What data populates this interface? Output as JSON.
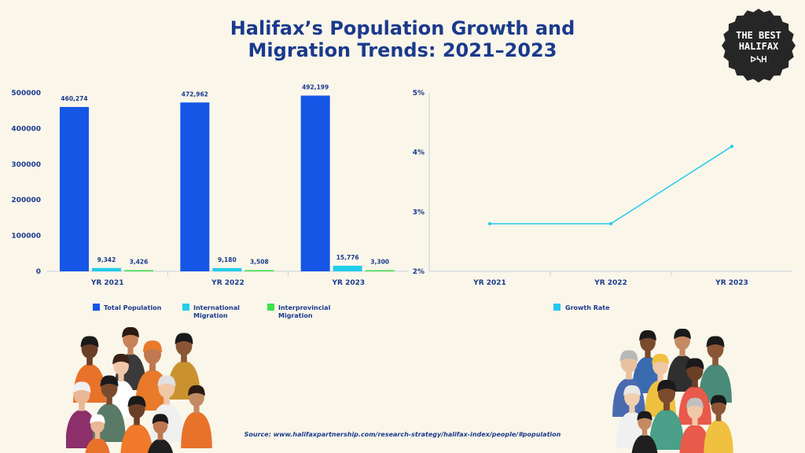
{
  "title": {
    "line1": "Halifax’s Population Growth and",
    "line2": "Migration Trends: 2021–2023"
  },
  "badge": {
    "line1": "THE BEST",
    "line2": "HALIFAX",
    "mark": "ᐅᓴᕼ"
  },
  "source": "Source: www.halifaxpartnership.com/research-strategy/halifax-index/people/#population",
  "colors": {
    "background": "#faf6ea",
    "title": "#1a3a8c",
    "total_population": "#1556e6",
    "international_migration": "#22cdea",
    "interprovincial_migration": "#3ee04a",
    "growth_rate": "#24c8ee"
  },
  "chart_data": [
    {
      "type": "bar",
      "categories": [
        "YR 2021",
        "YR 2022",
        "YR 2023"
      ],
      "series": [
        {
          "name": "Total Population",
          "values": [
            460274,
            472962,
            492199
          ],
          "labels": [
            "460,274",
            "472,962",
            "492,199"
          ]
        },
        {
          "name": "International Migration",
          "values": [
            9342,
            9180,
            15776
          ],
          "labels": [
            "9,342",
            "9,180",
            "15,776"
          ]
        },
        {
          "name": "Interprovincial Migration",
          "values": [
            3426,
            3508,
            3300
          ],
          "labels": [
            "3,426",
            "3,508",
            "3,300"
          ]
        }
      ],
      "legend_lines": [
        [
          "Total Population"
        ],
        [
          "International",
          "Migration"
        ],
        [
          "Interprovincial",
          "Migration"
        ]
      ],
      "yticks": [
        "0",
        "100000",
        "200000",
        "300000",
        "400000",
        "500000"
      ],
      "ylim": [
        0,
        500000
      ],
      "legend_position": "bottom",
      "grid": false
    },
    {
      "type": "line",
      "categories": [
        "YR 2021",
        "YR 2022",
        "YR 2023"
      ],
      "series": [
        {
          "name": "Growth Rate",
          "values": [
            2.8,
            2.8,
            4.1
          ]
        }
      ],
      "yticks": [
        "2%",
        "3%",
        "4%",
        "5%"
      ],
      "ylim": [
        2,
        5
      ],
      "legend_position": "bottom",
      "grid": false
    }
  ]
}
